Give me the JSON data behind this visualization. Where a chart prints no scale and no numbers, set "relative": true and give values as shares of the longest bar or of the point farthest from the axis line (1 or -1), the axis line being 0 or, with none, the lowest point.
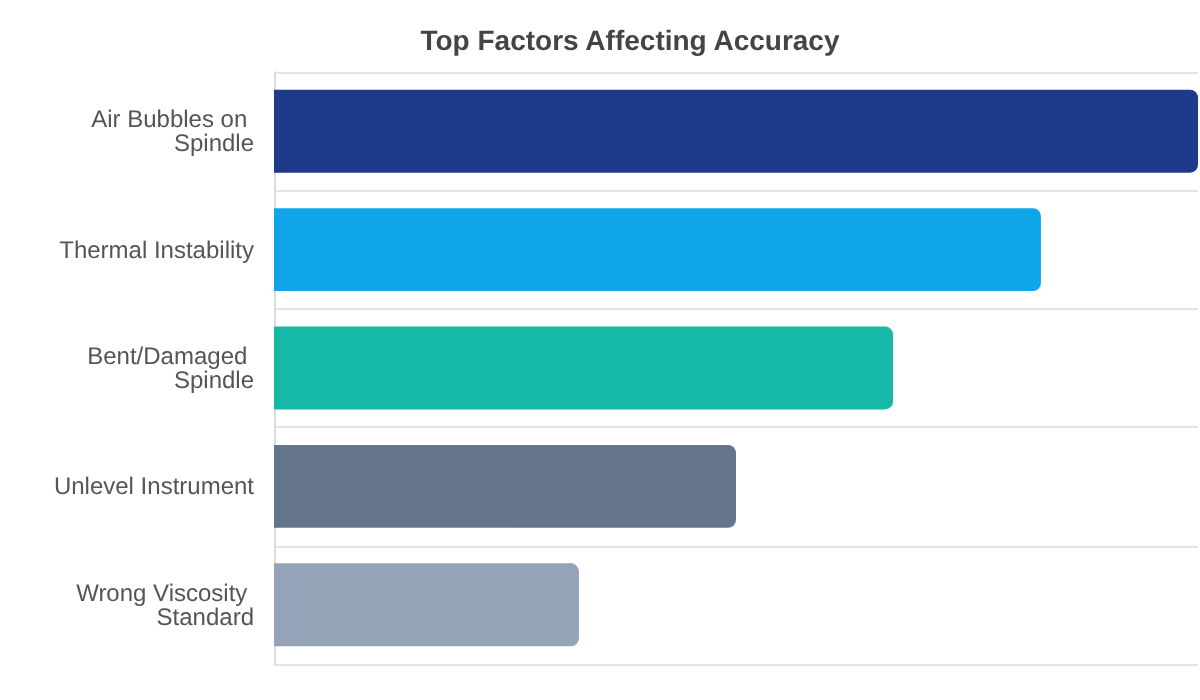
{
  "chart_data": {
    "type": "bar",
    "orientation": "horizontal",
    "relative": true,
    "title": "Top Factors Affecting Accuracy",
    "categories": [
      "Air Bubbles on Spindle",
      "Thermal Instability",
      "Bent/Damaged Spindle",
      "Unlevel Instrument",
      "Wrong Viscosity Standard"
    ],
    "values": [
      1,
      0.83,
      0.67,
      0.5,
      0.33
    ],
    "colors": [
      "#1e3a8a",
      "#10a5e8",
      "#16b9a6",
      "#64748b",
      "#94a3b8"
    ],
    "grid": "y"
  }
}
